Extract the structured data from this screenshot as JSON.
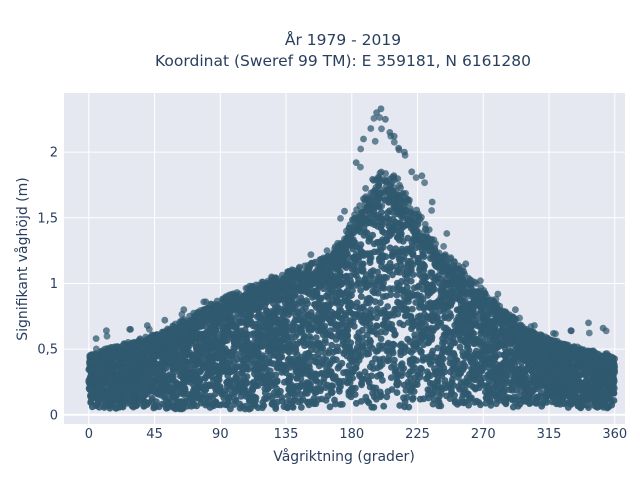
{
  "chart_data": {
    "type": "scatter",
    "title_line1": "År 1979 - 2019",
    "title_line2": "Koordinat (Sweref 99 TM): E 359181, N 6161280",
    "xlabel": "Vågriktning (grader)",
    "ylabel": "Signifikant våghöjd (m)",
    "xlim": [
      -17,
      367
    ],
    "ylim": [
      -0.07,
      2.45
    ],
    "xticks": [
      0,
      45,
      90,
      135,
      180,
      225,
      270,
      315,
      360
    ],
    "xtick_labels": [
      "0",
      "45",
      "90",
      "135",
      "180",
      "225",
      "270",
      "315",
      "360"
    ],
    "yticks": [
      0,
      0.5,
      1,
      1.5,
      2
    ],
    "ytick_labels": [
      "0",
      "0,5",
      "1",
      "1,5",
      "2"
    ],
    "grid": true,
    "marker_color": "#30596f",
    "plot_bgcolor": "#e5e8f0",
    "upper_envelope": {
      "x": [
        0,
        10,
        20,
        30,
        45,
        60,
        75,
        90,
        105,
        120,
        135,
        150,
        165,
        180,
        190,
        200,
        210,
        220,
        230,
        240,
        255,
        270,
        285,
        300,
        315,
        330,
        345,
        360
      ],
      "y": [
        0.43,
        0.47,
        0.5,
        0.53,
        0.58,
        0.66,
        0.75,
        0.84,
        0.9,
        0.96,
        1.03,
        1.08,
        1.15,
        1.4,
        1.65,
        1.75,
        1.72,
        1.55,
        1.38,
        1.22,
        1.05,
        0.9,
        0.75,
        0.62,
        0.55,
        0.5,
        0.46,
        0.43
      ]
    },
    "lower_envelope": {
      "x": [
        0,
        90,
        180,
        270,
        360
      ],
      "y": [
        0.05,
        0.04,
        0.05,
        0.06,
        0.05
      ]
    },
    "outliers": {
      "x": [
        5,
        12,
        28,
        40,
        52,
        65,
        80,
        95,
        110,
        125,
        140,
        152,
        163,
        175,
        183,
        188,
        193,
        197,
        200,
        203,
        206,
        209,
        212,
        216,
        221,
        228,
        235,
        245,
        258,
        268,
        280,
        292,
        305,
        318,
        330,
        342,
        352
      ],
      "y": [
        0.58,
        0.64,
        0.65,
        0.68,
        0.72,
        0.8,
        0.86,
        0.9,
        0.98,
        1.05,
        1.1,
        1.22,
        1.25,
        1.55,
        1.92,
        2.1,
        2.18,
        2.3,
        2.33,
        2.25,
        2.15,
        2.12,
        2.03,
        2.0,
        1.85,
        1.82,
        1.62,
        1.38,
        1.15,
        1.02,
        0.92,
        0.8,
        0.68,
        0.62,
        0.64,
        0.7,
        0.66
      ]
    }
  }
}
